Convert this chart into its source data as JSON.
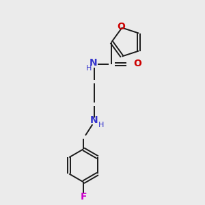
{
  "bg_color": "#ebebeb",
  "bond_color": "#1a1a1a",
  "N_color": "#3333cc",
  "O_color": "#cc0000",
  "F_color": "#cc00cc",
  "font_size": 10,
  "small_font_size": 8,
  "figsize": [
    3.0,
    3.0
  ],
  "dpi": 100,
  "xlim": [
    0,
    10
  ],
  "ylim": [
    0,
    10
  ]
}
